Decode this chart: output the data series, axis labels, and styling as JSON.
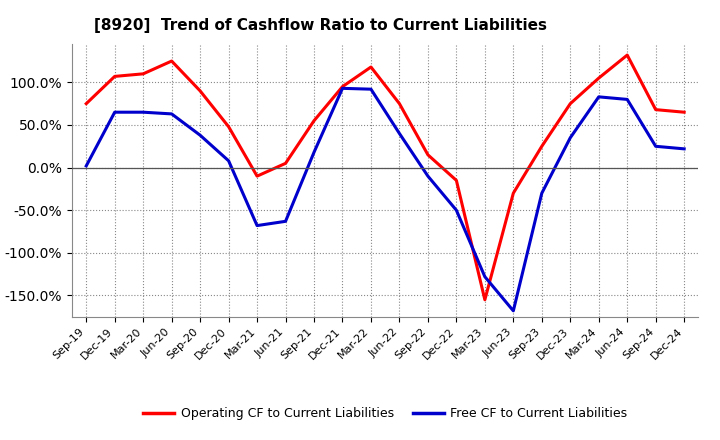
{
  "title": "[8920]  Trend of Cashflow Ratio to Current Liabilities",
  "x_labels": [
    "Sep-19",
    "Dec-19",
    "Mar-20",
    "Jun-20",
    "Sep-20",
    "Dec-20",
    "Mar-21",
    "Jun-21",
    "Sep-21",
    "Dec-21",
    "Mar-22",
    "Jun-22",
    "Sep-22",
    "Dec-22",
    "Mar-23",
    "Jun-23",
    "Sep-23",
    "Dec-23",
    "Mar-24",
    "Jun-24",
    "Sep-24",
    "Dec-24"
  ],
  "operating_cf": [
    75,
    107,
    110,
    125,
    90,
    48,
    -10,
    5,
    55,
    95,
    118,
    75,
    15,
    -15,
    -155,
    -30,
    25,
    75,
    105,
    132,
    68,
    65
  ],
  "free_cf": [
    2,
    65,
    65,
    63,
    38,
    8,
    -68,
    -63,
    18,
    93,
    92,
    40,
    -10,
    -50,
    -128,
    -168,
    -30,
    35,
    83,
    80,
    25,
    22
  ],
  "operating_color": "#FF0000",
  "free_color": "#0000CC",
  "ylim": [
    -175,
    145
  ],
  "yticks": [
    -150,
    -100,
    -50,
    0,
    50,
    100
  ],
  "background_color": "#ffffff",
  "grid_color": "#aaaaaa",
  "legend_op_label": "Operating CF to Current Liabilities",
  "legend_free_label": "Free CF to Current Liabilities",
  "title_fontsize": 11,
  "tick_fontsize": 8
}
